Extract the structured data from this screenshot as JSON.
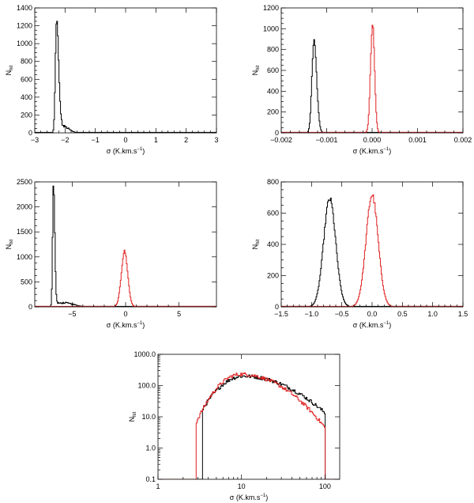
{
  "colors": {
    "black_series": "#000000",
    "red_series": "#e02020"
  },
  "chart_data": [
    {
      "type": "line",
      "xlabel": "σ (K.km.s",
      "xlabel_sup": "−1",
      "xlabel_tail": ")",
      "ylabel": "N",
      "ylabel_sub": "hit",
      "xlim": [
        -3,
        3
      ],
      "ylim": [
        0,
        1400
      ],
      "xticks": [
        -3,
        -2,
        -1,
        0,
        1,
        2,
        3
      ],
      "xtick_labels": [
        "−3",
        "−2",
        "−1",
        "0",
        "1",
        "2",
        "3"
      ],
      "yticks": [
        0,
        200,
        400,
        600,
        800,
        1000,
        1200,
        1400
      ],
      "ytick_labels": [
        "0",
        "200",
        "400",
        "600",
        "800",
        "1000",
        "1200",
        "1400"
      ],
      "series": [
        {
          "color": "#000000",
          "peaks": [
            {
              "center": -2.28,
              "height": 1230,
              "width_left": 0.04,
              "width_right": 0.07
            }
          ],
          "tail": {
            "height": 70,
            "center": -2.05,
            "width": 0.18
          }
        }
      ]
    },
    {
      "type": "line",
      "xlabel": "σ (K.km.s",
      "xlabel_sup": "−1",
      "xlabel_tail": ")",
      "ylabel": "N",
      "ylabel_sub": "hit",
      "xlim": [
        -0.002,
        0.002
      ],
      "ylim": [
        0,
        1200
      ],
      "xticks": [
        -0.002,
        -0.001,
        0,
        0.001,
        0.002
      ],
      "xtick_labels": [
        "−0.002",
        "−0.001",
        "0.000",
        "0.001",
        "0.002"
      ],
      "yticks": [
        0,
        200,
        400,
        600,
        800,
        1000,
        1200
      ],
      "ytick_labels": [
        "0",
        "200",
        "400",
        "600",
        "800",
        "1000",
        "1200"
      ],
      "series": [
        {
          "color": "#000000",
          "peaks": [
            {
              "center": -0.00128,
              "height": 880,
              "width_left": 4.5e-05,
              "width_right": 6e-05
            }
          ]
        },
        {
          "color": "#e02020",
          "peaks": [
            {
              "center": 1e-05,
              "height": 1050,
              "width_left": 4.5e-05,
              "width_right": 4.5e-05
            }
          ]
        }
      ]
    },
    {
      "type": "line",
      "xlabel": "σ (K.km.s",
      "xlabel_sup": "−1",
      "xlabel_tail": ")",
      "ylabel": "N",
      "ylabel_sub": "hit",
      "xlim": [
        -8.5,
        8.5
      ],
      "ylim": [
        0,
        2500
      ],
      "xticks": [
        -5,
        0,
        5
      ],
      "xtick_labels": [
        "−5",
        "0",
        "5"
      ],
      "yticks": [
        0,
        500,
        1000,
        1500,
        2000,
        2500
      ],
      "ytick_labels": [
        "0",
        "500",
        "1000",
        "1500",
        "2000",
        "2500"
      ],
      "series": [
        {
          "color": "#000000",
          "peaks": [
            {
              "center": -6.75,
              "height": 2450,
              "width_left": 0.08,
              "width_right": 0.12
            }
          ],
          "tail": {
            "height": 80,
            "center": -5.8,
            "width": 0.9
          }
        },
        {
          "color": "#e02020",
          "peaks": [
            {
              "center": -0.1,
              "height": 1110,
              "width_left": 0.3,
              "width_right": 0.3
            }
          ]
        }
      ]
    },
    {
      "type": "line",
      "xlabel": "σ (K.km.s",
      "xlabel_sup": "−1",
      "xlabel_tail": ")",
      "ylabel": "N",
      "ylabel_sub": "hit",
      "xlim": [
        -1.5,
        1.5
      ],
      "ylim": [
        0,
        800
      ],
      "xticks": [
        -1.5,
        -1.0,
        -0.5,
        0.0,
        0.5,
        1.0,
        1.5
      ],
      "xtick_labels": [
        "−1.5",
        "−1.0",
        "−0.5",
        "0.0",
        "0.5",
        "1.0",
        "1.5"
      ],
      "yticks": [
        0,
        200,
        400,
        600,
        800
      ],
      "ytick_labels": [
        "0",
        "200",
        "400",
        "600",
        "800"
      ],
      "series": [
        {
          "color": "#000000",
          "peaks": [
            {
              "center": -0.7,
              "height": 690,
              "width_left": 0.1,
              "width_right": 0.1
            }
          ]
        },
        {
          "color": "#e02020",
          "peaks": [
            {
              "center": 0.0,
              "height": 715,
              "width_left": 0.1,
              "width_right": 0.1
            }
          ]
        }
      ]
    },
    {
      "type": "line",
      "xscale": "log",
      "yscale": "log",
      "xlabel": "σ (K.km.s",
      "xlabel_sup": "−1",
      "xlabel_tail": ")",
      "ylabel": "N",
      "ylabel_sub": "hit",
      "xlim": [
        1,
        150
      ],
      "ylim": [
        0.1,
        1000
      ],
      "xticks": [
        1,
        10,
        100
      ],
      "xtick_labels": [
        "1",
        "10",
        "100"
      ],
      "yticks": [
        0.1,
        1,
        10,
        100,
        1000
      ],
      "ytick_labels": [
        "0.1",
        "1.0",
        "10.0",
        "100.0",
        "1000.0"
      ],
      "series": [
        {
          "color": "#000000",
          "peak": {
            "center": 10.5,
            "height": 200,
            "width_left": 0.22,
            "width_right": 0.42
          },
          "range": [
            3.4,
            100
          ]
        },
        {
          "color": "#e02020",
          "peak": {
            "center": 9.8,
            "height": 230,
            "width_left": 0.2,
            "width_right": 0.36
          },
          "range": [
            2.9,
            100
          ]
        }
      ]
    }
  ]
}
